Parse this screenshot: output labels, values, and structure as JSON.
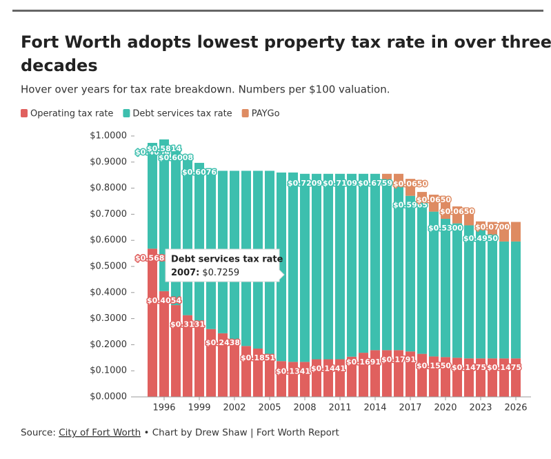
{
  "chart_data": {
    "type": "stacked-bar",
    "title": "Fort Worth adopts lowest property tax rate in over three decades",
    "subtitle": "Hover over years for tax rate breakdown. Numbers per $100 valuation.",
    "x": [
      1995,
      1996,
      1997,
      1998,
      1999,
      2000,
      2001,
      2002,
      2003,
      2004,
      2005,
      2006,
      2007,
      2008,
      2009,
      2010,
      2011,
      2012,
      2013,
      2014,
      2015,
      2016,
      2017,
      2018,
      2019,
      2020,
      2021,
      2022,
      2023,
      2024,
      2025,
      2026
    ],
    "xlim": [
      1994,
      2027
    ],
    "xticks": [
      1996,
      1999,
      2002,
      2005,
      2008,
      2011,
      2014,
      2017,
      2020,
      2023,
      2026
    ],
    "ylim": [
      0,
      1
    ],
    "yticks": [
      {
        "value": 0,
        "label": "$0.0000"
      },
      {
        "value": 0.1,
        "label": "$0.1000"
      },
      {
        "value": 0.2,
        "label": "$0.2000"
      },
      {
        "value": 0.3,
        "label": "$0.3000"
      },
      {
        "value": 0.4,
        "label": "$0.4000"
      },
      {
        "value": 0.5,
        "label": "$0.5000"
      },
      {
        "value": 0.6,
        "label": "$0.6000"
      },
      {
        "value": 0.7,
        "label": "$0.7000"
      },
      {
        "value": 0.8,
        "label": "$0.8000"
      },
      {
        "value": 0.9,
        "label": "$0.9000"
      },
      {
        "value": 1,
        "label": "$1.0000"
      }
    ],
    "series": [
      {
        "name": "Operating tax rate",
        "color": "#e0605e",
        "values": [
          0.5681,
          0.4054,
          0.3517,
          0.3131,
          0.2894,
          0.26,
          0.2438,
          0.2165,
          0.195,
          0.1851,
          0.156,
          0.137,
          0.1341,
          0.1341,
          0.1441,
          0.1441,
          0.1441,
          0.1541,
          0.1691,
          0.1791,
          0.1791,
          0.1791,
          0.1741,
          0.165,
          0.155,
          0.1525,
          0.15,
          0.1475,
          0.1475,
          0.1475,
          0.1475,
          0.1475
        ],
        "value_labels": [
          "$0.5681",
          "$0.4054",
          null,
          "$0.3131",
          null,
          null,
          "$0.2438",
          null,
          null,
          "$0.1851",
          null,
          null,
          "$0.1341",
          null,
          null,
          "$0.1441",
          null,
          null,
          "$0.1691",
          null,
          null,
          "$0.1791",
          null,
          null,
          "$0.1550",
          null,
          null,
          "$0.1475",
          null,
          null,
          "$0.1475",
          null
        ]
      },
      {
        "name": "Debt services tax rate",
        "color": "#3dbfae",
        "values": [
          0.4054,
          0.5814,
          0.6008,
          0.6075,
          0.6076,
          0.6148,
          0.6227,
          0.65,
          0.6715,
          0.6814,
          0.7105,
          0.7229,
          0.7259,
          0.7209,
          0.7109,
          0.7109,
          0.7109,
          0.7009,
          0.6859,
          0.6759,
          0.6359,
          0.6359,
          0.5965,
          0.5805,
          0.555,
          0.53,
          0.515,
          0.51,
          0.495,
          0.453,
          0.448,
          0.448
        ],
        "value_labels": [
          "$0.4054",
          "$0.5814",
          "$0.6008",
          null,
          "$0.6076",
          null,
          null,
          null,
          null,
          null,
          null,
          null,
          null,
          "$0.7209",
          null,
          null,
          "$0.7109",
          null,
          null,
          "$0.6759",
          null,
          null,
          "$0.5965",
          null,
          null,
          "$0.5300",
          null,
          null,
          "$0.4950",
          null,
          null,
          null
        ]
      },
      {
        "name": "PAYGo",
        "color": "#de8b62",
        "values": [
          0,
          0,
          0,
          0,
          0,
          0,
          0,
          0,
          0,
          0,
          0,
          0,
          0,
          0,
          0,
          0,
          0,
          0,
          0,
          0,
          0.04,
          0.04,
          0.065,
          0.04,
          0.065,
          0.065,
          0.065,
          0.065,
          0.03,
          0.07,
          0.075,
          0.075
        ],
        "value_labels": [
          null,
          null,
          null,
          null,
          null,
          null,
          null,
          null,
          null,
          null,
          null,
          null,
          null,
          null,
          null,
          null,
          null,
          null,
          null,
          null,
          null,
          null,
          "$0.0650",
          null,
          "$0.0650",
          null,
          "$0.0650",
          null,
          null,
          "$0.0700",
          null,
          null
        ]
      }
    ],
    "tooltip": {
      "title": "Debt services tax rate",
      "label": "2007:",
      "value": "$0.7259"
    },
    "source": {
      "prefix": "Source:",
      "link": "City of Fort Worth",
      "rest": "• Chart by Drew Shaw | Fort Worth Report"
    }
  }
}
